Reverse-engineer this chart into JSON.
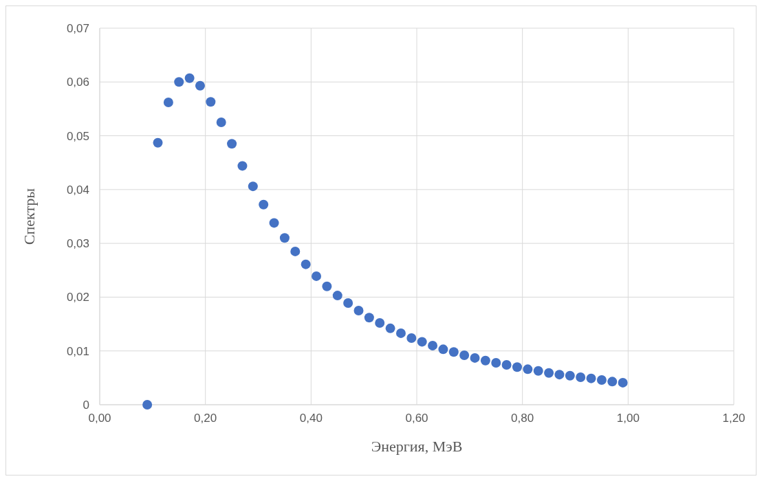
{
  "chart_data": {
    "type": "scatter",
    "xlabel": "Энергия, МэВ",
    "ylabel": "Спектры",
    "x": [
      0.09,
      0.11,
      0.13,
      0.15,
      0.17,
      0.19,
      0.21,
      0.23,
      0.25,
      0.27,
      0.29,
      0.31,
      0.33,
      0.35,
      0.37,
      0.39,
      0.41,
      0.43,
      0.45,
      0.47,
      0.49,
      0.51,
      0.53,
      0.55,
      0.57,
      0.59,
      0.61,
      0.63,
      0.65,
      0.67,
      0.69,
      0.71,
      0.73,
      0.75,
      0.77,
      0.79,
      0.81,
      0.83,
      0.85,
      0.87,
      0.89,
      0.91,
      0.93,
      0.95,
      0.97,
      0.99
    ],
    "series": [
      {
        "color": "#4472c4",
        "values": [
          0,
          0.0487,
          0.0562,
          0.06,
          0.0607,
          0.0593,
          0.0563,
          0.0525,
          0.0485,
          0.0444,
          0.0406,
          0.0372,
          0.0338,
          0.031,
          0.0285,
          0.0261,
          0.0239,
          0.022,
          0.0203,
          0.0189,
          0.0175,
          0.0162,
          0.0152,
          0.0142,
          0.0133,
          0.0124,
          0.0117,
          0.011,
          0.0103,
          0.0098,
          0.0092,
          0.0087,
          0.0082,
          0.0078,
          0.0074,
          0.007,
          0.0066,
          0.0063,
          0.0059,
          0.0056,
          0.0054,
          0.0051,
          0.0049,
          0.0046,
          0.0043,
          0.0041
        ]
      }
    ],
    "xlim": [
      0,
      1.2
    ],
    "ylim": [
      0,
      0.07
    ],
    "xticks": [
      {
        "value": 0,
        "label": "0,00"
      },
      {
        "value": 0.2,
        "label": "0,20"
      },
      {
        "value": 0.4,
        "label": "0,40"
      },
      {
        "value": 0.6,
        "label": "0,60"
      },
      {
        "value": 0.8,
        "label": "0,80"
      },
      {
        "value": 1,
        "label": "1,00"
      },
      {
        "value": 1.2,
        "label": "1,20"
      }
    ],
    "yticks": [
      0,
      {
        "value": 0.01,
        "label": "0,01"
      },
      {
        "value": 0.02,
        "label": "0,02"
      },
      {
        "value": 0.03,
        "label": "0,03"
      },
      {
        "value": 0.04,
        "label": "0,04"
      },
      {
        "value": 0.05,
        "label": "0,05"
      },
      {
        "value": 0.06,
        "label": "0,06"
      },
      {
        "value": 0.07,
        "label": "0,07"
      }
    ],
    "grid": true,
    "marker": "circle"
  }
}
